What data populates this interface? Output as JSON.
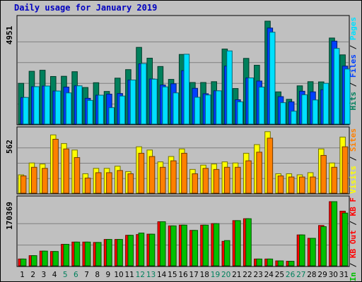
{
  "title": "Daily usage for January 2019",
  "colors": {
    "hits": "#00805c",
    "files": "#0040ff",
    "pages": "#00e0ff",
    "visits": "#ffff00",
    "sites": "#ff8000",
    "kbin": "#00c000",
    "kbout": "#ff0000",
    "weekend": "#00805c",
    "weekday": "#000000",
    "grid": "#808080",
    "panel": "#c0c0c0",
    "title": "#0000c0"
  },
  "legend": {
    "top": [
      {
        "label": "Hits",
        "color": "#00805c"
      },
      {
        "label": "Files",
        "color": "#0040ff"
      },
      {
        "label": "Pages",
        "color": "#00e0ff"
      }
    ],
    "mid": [
      {
        "label": "Visits",
        "color": "#ffff00"
      },
      {
        "label": "Sites",
        "color": "#ff8000"
      }
    ],
    "bot": [
      {
        "label": "KB In",
        "color": "#00c000"
      },
      {
        "label": "KB Out",
        "color": "#ff0000"
      },
      {
        "label": "KB F",
        "color": "#ff0000"
      }
    ]
  },
  "chart_data": [
    {
      "type": "bar",
      "panel": "hits",
      "max_label": "4951",
      "ylim": [
        0,
        4951
      ],
      "categories": [
        "1",
        "2",
        "3",
        "4",
        "5",
        "6",
        "7",
        "8",
        "9",
        "10",
        "11",
        "12",
        "13",
        "14",
        "15",
        "16",
        "17",
        "18",
        "19",
        "20",
        "21",
        "22",
        "23",
        "24",
        "25",
        "26",
        "27",
        "28",
        "29",
        "30",
        "31"
      ],
      "weekend": [
        5,
        6,
        12,
        13,
        19,
        20,
        26,
        27
      ],
      "series": [
        {
          "name": "Hits",
          "values": [
            1960,
            2540,
            2590,
            2290,
            2300,
            2520,
            1760,
            1990,
            1570,
            2210,
            2620,
            3690,
            3170,
            2770,
            2150,
            3350,
            2000,
            2000,
            2040,
            3610,
            1710,
            3160,
            2830,
            4951,
            1550,
            1190,
            1840,
            2040,
            2030,
            4140,
            3330
          ]
        },
        {
          "name": "Files",
          "values": [
            1280,
            1800,
            1830,
            1590,
            1780,
            1840,
            1240,
            1390,
            1440,
            1470,
            2120,
            2900,
            2170,
            1880,
            1940,
            2570,
            1720,
            1460,
            1600,
            2790,
            1170,
            2220,
            2070,
            4620,
            1320,
            1070,
            1580,
            1550,
            1650,
            3990,
            2790
          ]
        },
        {
          "name": "Pages",
          "values": [
            1280,
            1800,
            1830,
            1590,
            1500,
            1840,
            1140,
            1390,
            790,
            1350,
            2120,
            2910,
            2160,
            1790,
            1500,
            3360,
            1290,
            1400,
            1600,
            3520,
            1070,
            2220,
            1780,
            4420,
            1030,
            620,
            1410,
            1160,
            1960,
            3640,
            2650
          ]
        }
      ]
    },
    {
      "type": "bar",
      "panel": "visits",
      "max_label": "562",
      "ylim": [
        0,
        562
      ],
      "categories": [
        "1",
        "2",
        "3",
        "4",
        "5",
        "6",
        "7",
        "8",
        "9",
        "10",
        "11",
        "12",
        "13",
        "14",
        "15",
        "16",
        "17",
        "18",
        "19",
        "20",
        "21",
        "22",
        "23",
        "24",
        "25",
        "26",
        "27",
        "28",
        "29",
        "30",
        "31"
      ],
      "series": [
        {
          "name": "Visits",
          "values": [
            170,
            280,
            270,
            540,
            460,
            400,
            180,
            230,
            230,
            250,
            200,
            430,
            400,
            290,
            340,
            410,
            220,
            260,
            270,
            290,
            280,
            370,
            450,
            570,
            180,
            180,
            170,
            190,
            410,
            280,
            520
          ]
        },
        {
          "name": "Sites",
          "values": [
            160,
            240,
            230,
            500,
            410,
            330,
            140,
            190,
            190,
            210,
            180,
            370,
            340,
            240,
            300,
            370,
            180,
            230,
            220,
            240,
            240,
            300,
            380,
            510,
            160,
            150,
            150,
            150,
            350,
            240,
            430
          ]
        }
      ]
    },
    {
      "type": "bar",
      "panel": "kbytes",
      "max_label": "170369",
      "ylim": [
        0,
        170369
      ],
      "categories": [
        "1",
        "2",
        "3",
        "4",
        "5",
        "6",
        "7",
        "8",
        "9",
        "10",
        "11",
        "12",
        "13",
        "14",
        "15",
        "16",
        "17",
        "18",
        "19",
        "20",
        "21",
        "22",
        "23",
        "24",
        "25",
        "26",
        "27",
        "28",
        "29",
        "30",
        "31"
      ],
      "series": [
        {
          "name": "KB Out",
          "values": [
            18000,
            27000,
            39000,
            38000,
            57000,
            63000,
            63000,
            62000,
            70000,
            70000,
            81000,
            83000,
            84000,
            117000,
            106000,
            108000,
            94000,
            108000,
            112000,
            65000,
            120000,
            125000,
            18000,
            18000,
            13000,
            12000,
            82000,
            73000,
            107000,
            170369,
            145000
          ]
        },
        {
          "name": "KB In",
          "values": [
            18000,
            27000,
            39000,
            38000,
            57000,
            63000,
            63000,
            62000,
            70000,
            70000,
            81000,
            87000,
            84000,
            117000,
            106000,
            108000,
            94000,
            108000,
            112000,
            67000,
            120000,
            125000,
            18000,
            18000,
            13000,
            12000,
            82000,
            73000,
            104000,
            170369,
            140000
          ]
        }
      ]
    }
  ]
}
